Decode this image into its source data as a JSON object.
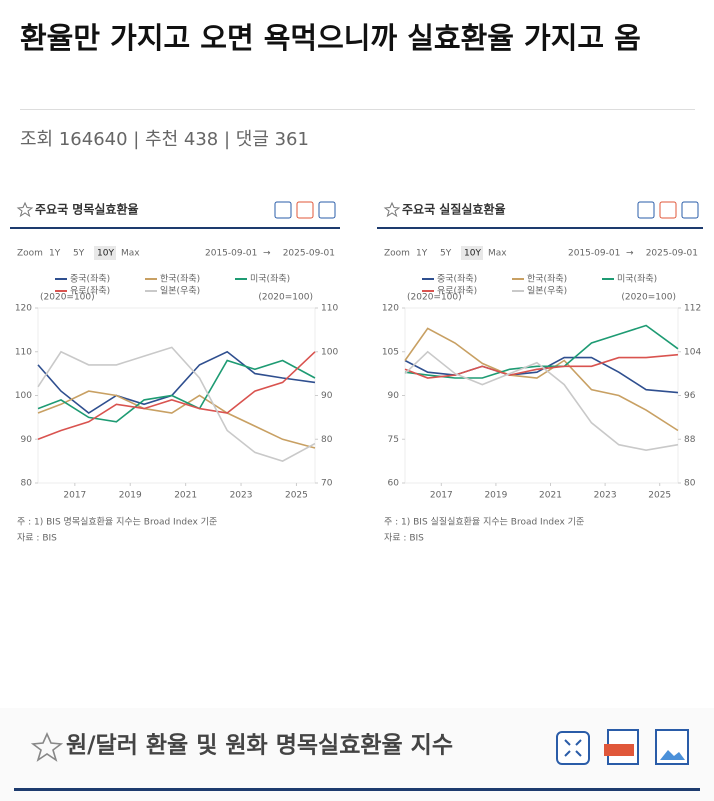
{
  "post": {
    "title": "환율만 가지고 오면 욕먹으니까 실효환율 가지고 옴",
    "meta": "조회 164640 | 추천 438 | 댓글 361"
  },
  "chart_data": [
    {
      "type": "line",
      "title": "주요국 명목실효환율",
      "zoom_label": "Zoom",
      "zoom_buttons": [
        "1Y",
        "5Y",
        "10Y",
        "Max"
      ],
      "active_zoom": 2,
      "date_range": [
        "2015-09-01",
        "2025-09-01"
      ],
      "date_separator": "→",
      "y_note": "(2020=100)",
      "y2_note": "(2020=100)",
      "x": [
        2015.67,
        2016.5,
        2017.5,
        2018.5,
        2019.5,
        2020.5,
        2021.5,
        2022.5,
        2023.5,
        2024.5,
        2025.67
      ],
      "xlim": [
        2015.67,
        2025.67
      ],
      "xticks": [
        2017,
        2019,
        2021,
        2023,
        2025
      ],
      "ylim": [
        80,
        120
      ],
      "yticks": [
        80,
        90,
        100,
        110,
        120
      ],
      "y2lim": [
        70,
        110
      ],
      "y2ticks": [
        70,
        80,
        90,
        100,
        110
      ],
      "grid": false,
      "series": [
        {
          "name": "중국(좌축)",
          "color": "#2f4f8f",
          "values": [
            107,
            101,
            96,
            100,
            98,
            100,
            107,
            110,
            105,
            104,
            103
          ]
        },
        {
          "name": "한국(좌축)",
          "color": "#c8a063",
          "values": [
            96,
            98,
            101,
            100,
            97,
            96,
            100,
            96,
            93,
            90,
            88
          ]
        },
        {
          "name": "미국(좌축)",
          "color": "#1e9b73",
          "values": [
            97,
            99,
            95,
            94,
            99,
            100,
            97,
            108,
            106,
            108,
            104
          ]
        },
        {
          "name": "유로(좌축)",
          "color": "#d9534f",
          "values": [
            90,
            92,
            94,
            98,
            97,
            99,
            97,
            96,
            101,
            103,
            110
          ]
        },
        {
          "name": "일본(우축)",
          "color": "#c9c9c9",
          "axis": "y2",
          "values": [
            92,
            100,
            97,
            97,
            99,
            101,
            94,
            82,
            77,
            75,
            79
          ]
        }
      ],
      "notes": [
        "주 : 1) BIS 명목실효환율 지수는 Broad Index 기준",
        "자료 : BIS"
      ]
    },
    {
      "type": "line",
      "title": "주요국 실질실효환율",
      "zoom_label": "Zoom",
      "zoom_buttons": [
        "1Y",
        "5Y",
        "10Y",
        "Max"
      ],
      "active_zoom": 2,
      "date_range": [
        "2015-09-01",
        "2025-09-01"
      ],
      "date_separator": "→",
      "y_note": "(2020=100)",
      "y2_note": "(2020=100)",
      "x": [
        2015.67,
        2016.5,
        2017.5,
        2018.5,
        2019.5,
        2020.5,
        2021.5,
        2022.5,
        2023.5,
        2024.5,
        2025.67
      ],
      "xlim": [
        2015.67,
        2025.67
      ],
      "xticks": [
        2017,
        2019,
        2021,
        2023,
        2025
      ],
      "ylim": [
        60,
        120
      ],
      "yticks": [
        60,
        75,
        90,
        105,
        120
      ],
      "y2lim": [
        80,
        112
      ],
      "y2ticks": [
        80,
        88,
        96,
        104,
        112
      ],
      "grid": false,
      "series": [
        {
          "name": "중국(좌축)",
          "color": "#2f4f8f",
          "values": [
            102,
            98,
            97,
            100,
            97,
            98,
            103,
            103,
            98,
            92,
            91
          ]
        },
        {
          "name": "한국(좌축)",
          "color": "#c8a063",
          "values": [
            102,
            113,
            108,
            101,
            97,
            96,
            102,
            92,
            90,
            85,
            78
          ]
        },
        {
          "name": "미국(좌축)",
          "color": "#1e9b73",
          "values": [
            98,
            97,
            96,
            96,
            99,
            100,
            100,
            108,
            111,
            114,
            106
          ]
        },
        {
          "name": "유로(좌축)",
          "color": "#d9534f",
          "values": [
            99,
            96,
            97,
            100,
            97,
            99,
            100,
            100,
            103,
            103,
            104
          ]
        },
        {
          "name": "일본(우축)",
          "color": "#c9c9c9",
          "axis": "y2",
          "values": [
            100,
            104,
            100,
            98,
            100,
            102,
            98,
            91,
            87,
            86,
            87
          ]
        }
      ],
      "notes": [
        "주 : 1) BIS 실질실효환율 지수는 Broad Index 기준",
        "자료 : BIS"
      ]
    }
  ],
  "section": {
    "title": "원/달러 환율 및 원화 명목실효환율 지수"
  }
}
